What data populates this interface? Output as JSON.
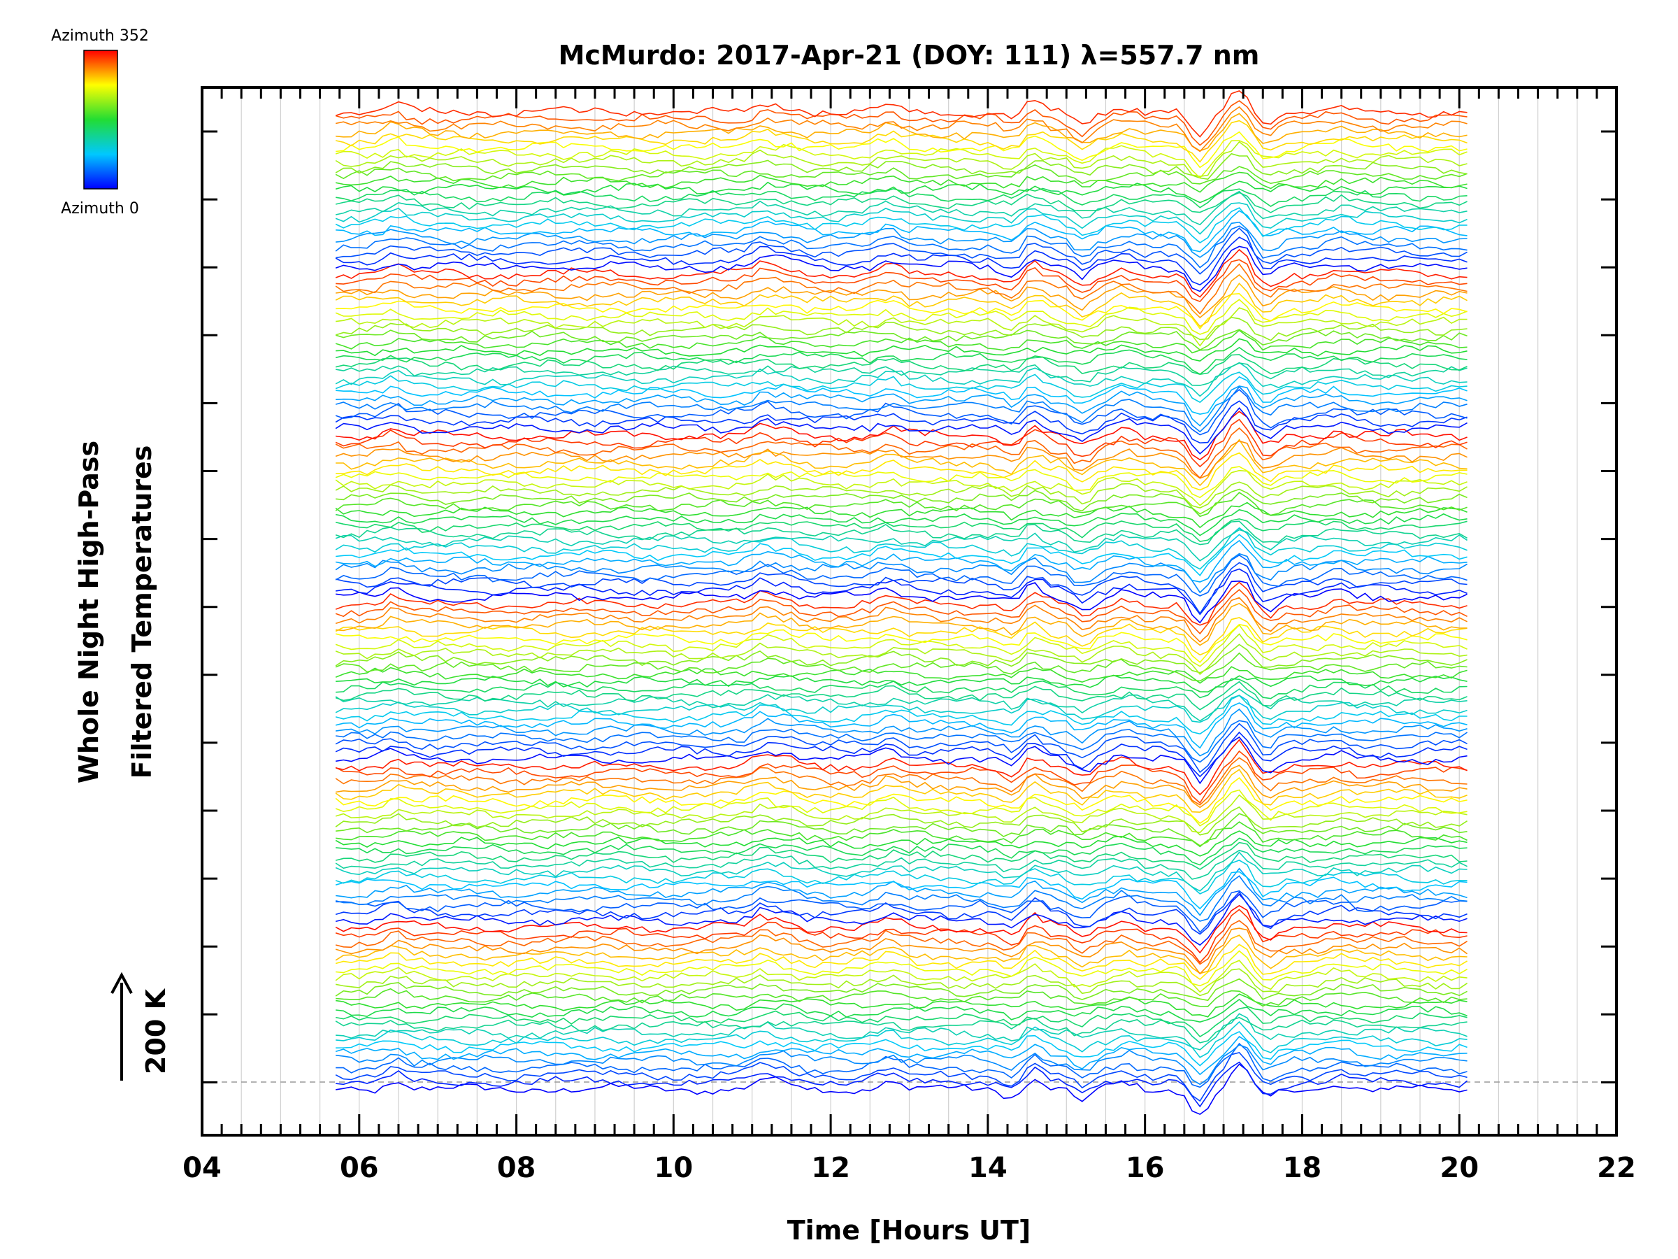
{
  "chart_data": {
    "type": "line",
    "title": "McMurdo: 2017-Apr-21 (DOY: 111) λ=557.7 nm",
    "xlabel": "Time [Hours UT]",
    "ylabel_lines": [
      "Whole Night High-Pass",
      "Filtered Temperatures"
    ],
    "scale_label": "200 K",
    "xlim": [
      4,
      22
    ],
    "x_tick_labels": [
      "04",
      "06",
      "08",
      "10",
      "12",
      "14",
      "16",
      "18",
      "20",
      "22"
    ],
    "data_time_range": [
      5.7,
      20.15
    ],
    "grid": true,
    "colorbar": {
      "top_label": "Azimuth 352",
      "bottom_label": "Azimuth 0",
      "azimuth_range": [
        0,
        352
      ],
      "colormap": "rainbow (blue → green → yellow → red)"
    },
    "stacked_traces": {
      "count": 140,
      "groups": 6,
      "traces_per_group": 23,
      "note": "Traces are vertically offset; dashed baseline at the bottom marks the reference level."
    },
    "common_features": [
      {
        "t": 6.45,
        "amp": 0.7,
        "sign": 1
      },
      {
        "t": 11.15,
        "amp": 0.9,
        "sign": 1
      },
      {
        "t": 11.45,
        "amp": 0.55,
        "sign": 1
      },
      {
        "t": 12.75,
        "amp": 0.75,
        "sign": 1
      },
      {
        "t": 14.35,
        "amp": 0.9,
        "sign": -1
      },
      {
        "t": 14.55,
        "amp": 1.2,
        "sign": 1
      },
      {
        "t": 15.2,
        "amp": 1.3,
        "sign": -1
      },
      {
        "t": 15.75,
        "amp": 0.6,
        "sign": 1
      },
      {
        "t": 16.7,
        "amp": 2.6,
        "sign": -1
      },
      {
        "t": 17.2,
        "amp": 2.2,
        "sign": 1
      },
      {
        "t": 17.55,
        "amp": 1.1,
        "sign": -1
      },
      {
        "t": 18.45,
        "amp": 0.5,
        "sign": 1
      }
    ],
    "colors": {
      "frame": "#000000",
      "grid": "#d0d0d0",
      "baseline": "#999999"
    }
  }
}
